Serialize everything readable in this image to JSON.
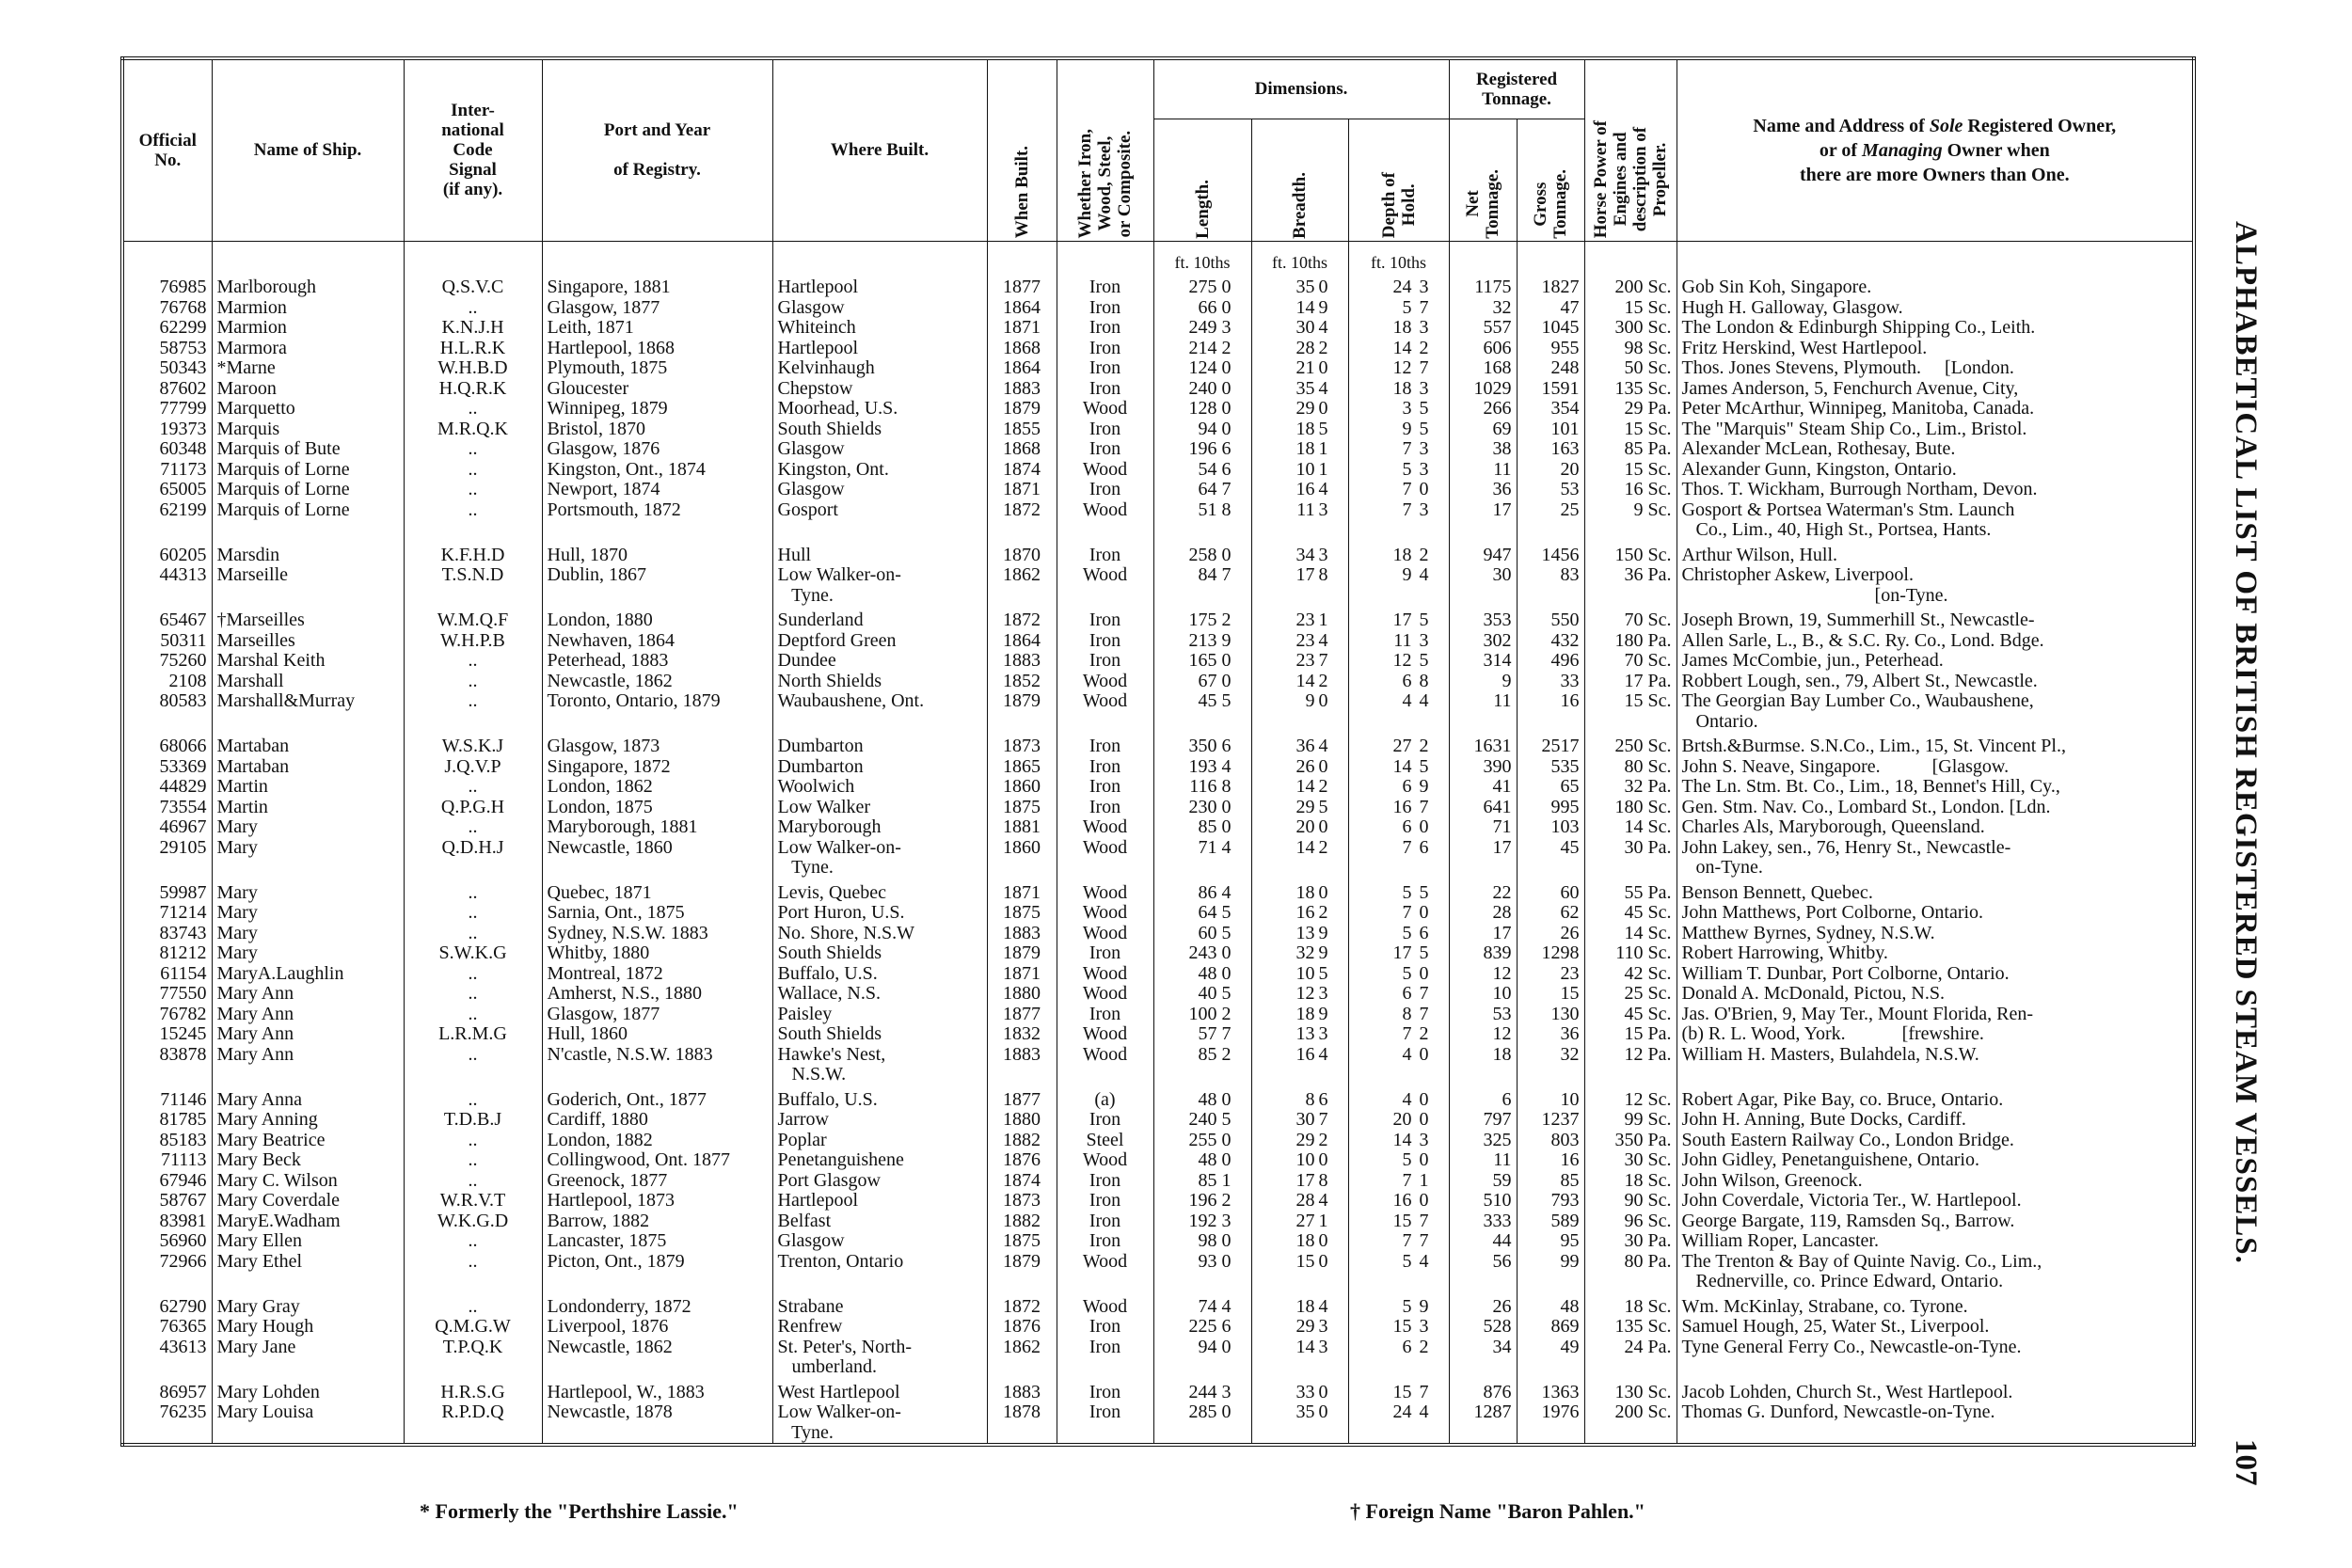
{
  "header": {
    "official_no": "Official\nNo.",
    "name": "Name of Ship.",
    "signal": "Inter-\nnational\nCode\nSignal\n(if any).",
    "port": "Port and Year\n\nof Registry.",
    "where": "Where Built.",
    "when": "When Built.",
    "material": "Whether Iron,\nWood, Steel,\nor Composite.",
    "dimensions": "Dimensions.",
    "length": "Length.",
    "breadth": "Breadth.",
    "depth": "Depth of\nHold.",
    "tonnage": "Registered\nTonnage.",
    "net": "Net\nTonnage.",
    "gross": "Gross\nTonnage.",
    "hp": "Horse Power of\nEngines and\ndescription of\nPropeller.",
    "owner": [
      "Name and Address of ",
      "Sole",
      " Registered Owner,",
      "or of ",
      "Managing",
      " Owner when",
      "there are more Owners than One."
    ],
    "units": [
      "ft. 10ths",
      "ft. 10ths",
      "ft. 10ths"
    ]
  },
  "groups": [
    [
      [
        76985,
        "Marlborough",
        "Q.S.V.C",
        "Singapore, 1881",
        "Hartlepool",
        1877,
        "Iron",
        [
          275,
          0
        ],
        [
          35,
          0
        ],
        [
          24,
          3
        ],
        1175,
        1827,
        "200 Sc.",
        "Gob Sin Koh, Singapore."
      ],
      [
        76768,
        "Marmion",
        "..",
        "Glasgow, 1877",
        "Glasgow",
        1864,
        "Iron",
        [
          66,
          0
        ],
        [
          14,
          9
        ],
        [
          5,
          7
        ],
        32,
        47,
        "15 Sc.",
        "Hugh H. Galloway, Glasgow."
      ],
      [
        62299,
        "Marmion",
        "K.N.J.H",
        "Leith, 1871",
        "Whiteinch",
        1871,
        "Iron",
        [
          249,
          3
        ],
        [
          30,
          4
        ],
        [
          18,
          3
        ],
        557,
        1045,
        "300 Sc.",
        "The London & Edinburgh Shipping Co., Leith."
      ],
      [
        58753,
        "Marmora",
        "H.L.R.K",
        "Hartlepool, 1868",
        "Hartlepool",
        1868,
        "Iron",
        [
          214,
          2
        ],
        [
          28,
          2
        ],
        [
          14,
          2
        ],
        606,
        955,
        "98 Sc.",
        "Fritz Herskind, West Hartlepool."
      ],
      [
        50343,
        "*Marne",
        "W.H.B.D",
        "Plymouth, 1875",
        "Kelvinhaugh",
        1864,
        "Iron",
        [
          124,
          0
        ],
        [
          21,
          0
        ],
        [
          12,
          7
        ],
        168,
        248,
        "50 Sc.",
        "Thos. Jones Stevens, Plymouth.     [London."
      ],
      [
        87602,
        "Maroon",
        "H.Q.R.K",
        "Gloucester",
        "Chepstow",
        1883,
        "Iron",
        [
          240,
          0
        ],
        [
          35,
          4
        ],
        [
          18,
          3
        ],
        1029,
        1591,
        "135 Sc.",
        "James Anderson, 5, Fenchurch Avenue, City,"
      ],
      [
        77799,
        "Marquetto",
        "..",
        "Winnipeg, 1879",
        "Moorhead, U.S.",
        1879,
        "Wood",
        [
          128,
          0
        ],
        [
          29,
          0
        ],
        [
          3,
          5
        ],
        266,
        354,
        "29 Pa.",
        "Peter McArthur, Winnipeg, Manitoba, Canada."
      ],
      [
        19373,
        "Marquis",
        "M.R.Q.K",
        "Bristol, 1870",
        "South Shields",
        1855,
        "Iron",
        [
          94,
          0
        ],
        [
          18,
          5
        ],
        [
          9,
          5
        ],
        69,
        101,
        "15 Sc.",
        "The \"Marquis\" Steam Ship Co., Lim., Bristol."
      ],
      [
        60348,
        "Marquis of Bute",
        "..",
        "Glasgow, 1876",
        "Glasgow",
        1868,
        "Iron",
        [
          196,
          6
        ],
        [
          18,
          1
        ],
        [
          7,
          3
        ],
        38,
        163,
        "85 Pa.",
        "Alexander McLean, Rothesay, Bute."
      ],
      [
        71173,
        "Marquis of Lorne",
        "..",
        "Kingston, Ont., 1874",
        "Kingston, Ont.",
        1874,
        "Wood",
        [
          54,
          6
        ],
        [
          10,
          1
        ],
        [
          5,
          3
        ],
        11,
        20,
        "15 Sc.",
        "Alexander Gunn, Kingston, Ontario."
      ],
      [
        65005,
        "Marquis of Lorne",
        "..",
        "Newport, 1874",
        "Glasgow",
        1871,
        "Iron",
        [
          64,
          7
        ],
        [
          16,
          4
        ],
        [
          7,
          0
        ],
        36,
        53,
        "16 Sc.",
        "Thos. T. Wickham, Burrough Northam, Devon."
      ],
      [
        62199,
        "Marquis of Lorne",
        "..",
        "Portsmouth, 1872",
        "Gosport",
        1872,
        "Wood",
        [
          51,
          8
        ],
        [
          11,
          3
        ],
        [
          7,
          3
        ],
        17,
        25,
        "9 Sc.",
        "Gosport & Portsea Waterman's Stm. Launch\n   Co., Lim., 40, High St., Portsea, Hants."
      ]
    ],
    [
      [
        60205,
        "Marsdin",
        "K.F.H.D",
        "Hull, 1870",
        "Hull",
        1870,
        "Iron",
        [
          258,
          0
        ],
        [
          34,
          3
        ],
        [
          18,
          2
        ],
        947,
        1456,
        "150 Sc.",
        "Arthur Wilson, Hull."
      ],
      [
        44313,
        "Marseille",
        "T.S.N.D",
        "Dublin, 1867",
        "Low Walker-on-\n   Tyne.",
        1862,
        "Wood",
        [
          84,
          7
        ],
        [
          17,
          8
        ],
        [
          9,
          4
        ],
        30,
        83,
        "36 Pa.",
        "Christopher Askew, Liverpool.\n                                         [on-Tyne."
      ]
    ],
    [
      [
        65467,
        "†Marseilles",
        "W.M.Q.F",
        "London, 1880",
        "Sunderland",
        1872,
        "Iron",
        [
          175,
          2
        ],
        [
          23,
          1
        ],
        [
          17,
          5
        ],
        353,
        550,
        "70 Sc.",
        "Joseph Brown, 19, Summerhill St., Newcastle-"
      ],
      [
        50311,
        "Marseilles",
        "W.H.P.B",
        "Newhaven, 1864",
        "Deptford Green",
        1864,
        "Iron",
        [
          213,
          9
        ],
        [
          23,
          4
        ],
        [
          11,
          3
        ],
        302,
        432,
        "180 Pa.",
        "Allen Sarle, L., B., & S.C. Ry. Co., Lond. Bdge."
      ],
      [
        75260,
        "Marshal Keith",
        "..",
        "Peterhead, 1883",
        "Dundee",
        1883,
        "Iron",
        [
          165,
          0
        ],
        [
          23,
          7
        ],
        [
          12,
          5
        ],
        314,
        496,
        "70 Sc.",
        "James McCombie, jun., Peterhead."
      ],
      [
        2108,
        "Marshall",
        "..",
        "Newcastle, 1862",
        "North Shields",
        1852,
        "Wood",
        [
          67,
          0
        ],
        [
          14,
          2
        ],
        [
          6,
          8
        ],
        9,
        33,
        "17 Pa.",
        "Robbert Lough, sen., 79, Albert St., Newcastle."
      ],
      [
        80583,
        "Marshall&Murray",
        "..",
        "Toronto, Ontario, 1879",
        "Waubaushene, Ont.",
        1879,
        "Wood",
        [
          45,
          5
        ],
        [
          9,
          0
        ],
        [
          4,
          4
        ],
        11,
        16,
        "15 Sc.",
        "The Georgian Bay Lumber Co., Waubaushene,\n   Ontario."
      ]
    ],
    [
      [
        68066,
        "Martaban",
        "W.S.K.J",
        "Glasgow, 1873",
        "Dumbarton",
        1873,
        "Iron",
        [
          350,
          6
        ],
        [
          36,
          4
        ],
        [
          27,
          2
        ],
        1631,
        2517,
        "250 Sc.",
        "Brtsh.&Burmse. S.N.Co., Lim., 15, St. Vincent Pl.,"
      ],
      [
        53369,
        "Martaban",
        "J.Q.V.P",
        "Singapore, 1872",
        "Dumbarton",
        1865,
        "Iron",
        [
          193,
          4
        ],
        [
          26,
          0
        ],
        [
          14,
          5
        ],
        390,
        535,
        "80 Sc.",
        "John S. Neave, Singapore.           [Glasgow."
      ],
      [
        44829,
        "Martin",
        "..",
        "London, 1862",
        "Woolwich",
        1860,
        "Iron",
        [
          116,
          8
        ],
        [
          14,
          2
        ],
        [
          6,
          9
        ],
        41,
        65,
        "32 Pa.",
        "The Ln. Stm. Bt. Co., Lim., 18, Bennet's Hill, Cy.,"
      ],
      [
        73554,
        "Martin",
        "Q.P.G.H",
        "London, 1875",
        "Low Walker",
        1875,
        "Iron",
        [
          230,
          0
        ],
        [
          29,
          5
        ],
        [
          16,
          7
        ],
        641,
        995,
        "180 Sc.",
        "Gen. Stm. Nav. Co., Lombard St., London. [Ldn."
      ],
      [
        46967,
        "Mary",
        "..",
        "Maryborough, 1881",
        "Maryborough",
        1881,
        "Wood",
        [
          85,
          0
        ],
        [
          20,
          0
        ],
        [
          6,
          0
        ],
        71,
        103,
        "14 Sc.",
        "Charles Als, Maryborough, Queensland."
      ],
      [
        29105,
        "Mary",
        "Q.D.H.J",
        "Newcastle, 1860",
        "Low Walker-on-\n   Tyne.",
        1860,
        "Wood",
        [
          71,
          4
        ],
        [
          14,
          2
        ],
        [
          7,
          6
        ],
        17,
        45,
        "30 Pa.",
        "John Lakey, sen., 76, Henry St., Newcastle-\n   on-Tyne."
      ]
    ],
    [
      [
        59987,
        "Mary",
        "..",
        "Quebec, 1871",
        "Levis, Quebec",
        1871,
        "Wood",
        [
          86,
          4
        ],
        [
          18,
          0
        ],
        [
          5,
          5
        ],
        22,
        60,
        "55 Pa.",
        "Benson Bennett, Quebec."
      ],
      [
        71214,
        "Mary",
        "..",
        "Sarnia, Ont., 1875",
        "Port Huron, U.S.",
        1875,
        "Wood",
        [
          64,
          5
        ],
        [
          16,
          2
        ],
        [
          7,
          0
        ],
        28,
        62,
        "45 Sc.",
        "John Matthews, Port Colborne, Ontario."
      ],
      [
        83743,
        "Mary",
        "..",
        "Sydney, N.S.W. 1883",
        "No. Shore, N.S.W",
        1883,
        "Wood",
        [
          60,
          5
        ],
        [
          13,
          9
        ],
        [
          5,
          6
        ],
        17,
        26,
        "14 Sc.",
        "Matthew Byrnes, Sydney, N.S.W."
      ],
      [
        81212,
        "Mary",
        "S.W.K.G",
        "Whitby, 1880",
        "South Shields",
        1879,
        "Iron",
        [
          243,
          0
        ],
        [
          32,
          9
        ],
        [
          17,
          5
        ],
        839,
        1298,
        "110 Sc.",
        "Robert Harrowing, Whitby."
      ],
      [
        61154,
        "MaryA.Laughlin",
        "..",
        "Montreal, 1872",
        "Buffalo, U.S.",
        1871,
        "Wood",
        [
          48,
          0
        ],
        [
          10,
          5
        ],
        [
          5,
          0
        ],
        12,
        23,
        "42 Sc.",
        "William T. Dunbar, Port Colborne, Ontario."
      ],
      [
        77550,
        "Mary Ann",
        "..",
        "Amherst, N.S., 1880",
        "Wallace, N.S.",
        1880,
        "Wood",
        [
          40,
          5
        ],
        [
          12,
          3
        ],
        [
          6,
          7
        ],
        10,
        15,
        "25 Sc.",
        "Donald A. McDonald, Pictou, N.S."
      ],
      [
        76782,
        "Mary Ann",
        "..",
        "Glasgow, 1877",
        "Paisley",
        1877,
        "Iron",
        [
          100,
          2
        ],
        [
          18,
          9
        ],
        [
          8,
          7
        ],
        53,
        130,
        "45 Sc.",
        "Jas. O'Brien, 9, May Ter., Mount Florida, Ren-"
      ],
      [
        15245,
        "Mary Ann",
        "L.R.M.G",
        "Hull, 1860",
        "South Shields",
        1832,
        "Wood",
        [
          57,
          7
        ],
        [
          13,
          3
        ],
        [
          7,
          2
        ],
        12,
        36,
        "15 Pa.",
        "(b) R. L. Wood, York.            [frewshire."
      ],
      [
        83878,
        "Mary Ann",
        "..",
        "N'castle, N.S.W. 1883",
        "Hawke's Nest,\n   N.S.W.",
        1883,
        "Wood",
        [
          85,
          2
        ],
        [
          16,
          4
        ],
        [
          4,
          0
        ],
        18,
        32,
        "12 Pa.",
        "William H. Masters, Bulahdela, N.S.W."
      ]
    ],
    [
      [
        71146,
        "Mary Anna",
        "..",
        "Goderich, Ont., 1877",
        "Buffalo, U.S.",
        1877,
        "(a)",
        [
          48,
          0
        ],
        [
          8,
          6
        ],
        [
          4,
          0
        ],
        6,
        10,
        "12 Sc.",
        "Robert Agar, Pike Bay, co. Bruce, Ontario."
      ],
      [
        81785,
        "Mary Anning",
        "T.D.B.J",
        "Cardiff, 1880",
        "Jarrow",
        1880,
        "Iron",
        [
          240,
          5
        ],
        [
          30,
          7
        ],
        [
          20,
          0
        ],
        797,
        1237,
        "99 Sc.",
        "John H. Anning, Bute Docks, Cardiff."
      ],
      [
        85183,
        "Mary Beatrice",
        "..",
        "London, 1882",
        "Poplar",
        1882,
        "Steel",
        [
          255,
          0
        ],
        [
          29,
          2
        ],
        [
          14,
          3
        ],
        325,
        803,
        "350 Pa.",
        "South Eastern Railway Co., London Bridge."
      ],
      [
        71113,
        "Mary Beck",
        "..",
        "Collingwood, Ont. 1877",
        "Penetanguishene",
        1876,
        "Wood",
        [
          48,
          0
        ],
        [
          10,
          0
        ],
        [
          5,
          0
        ],
        11,
        16,
        "30 Sc.",
        "John Gidley, Penetanguishene, Ontario."
      ],
      [
        67946,
        "Mary C. Wilson",
        "..",
        "Greenock, 1877",
        "Port Glasgow",
        1874,
        "Iron",
        [
          85,
          1
        ],
        [
          17,
          8
        ],
        [
          7,
          1
        ],
        59,
        85,
        "18 Sc.",
        "John Wilson, Greenock."
      ],
      [
        58767,
        "Mary Coverdale",
        "W.R.V.T",
        "Hartlepool, 1873",
        "Hartlepool",
        1873,
        "Iron",
        [
          196,
          2
        ],
        [
          28,
          4
        ],
        [
          16,
          0
        ],
        510,
        793,
        "90 Sc.",
        "John Coverdale, Victoria Ter., W. Hartlepool."
      ],
      [
        83981,
        "MaryE.Wadham",
        "W.K.G.D",
        "Barrow, 1882",
        "Belfast",
        1882,
        "Iron",
        [
          192,
          3
        ],
        [
          27,
          1
        ],
        [
          15,
          7
        ],
        333,
        589,
        "96 Sc.",
        "George Bargate, 119, Ramsden Sq., Barrow."
      ],
      [
        56960,
        "Mary Ellen",
        "..",
        "Lancaster, 1875",
        "Glasgow",
        1875,
        "Iron",
        [
          98,
          0
        ],
        [
          18,
          0
        ],
        [
          7,
          7
        ],
        44,
        95,
        "30 Pa.",
        "William Roper, Lancaster."
      ],
      [
        72966,
        "Mary Ethel",
        "..",
        "Picton, Ont., 1879",
        "Trenton, Ontario",
        1879,
        "Wood",
        [
          93,
          0
        ],
        [
          15,
          0
        ],
        [
          5,
          4
        ],
        56,
        99,
        "80 Pa.",
        "The Trenton & Bay of Quinte Navig. Co., Lim.,\n   Rednerville, co. Prince Edward, Ontario."
      ]
    ],
    [
      [
        62790,
        "Mary Gray",
        "..",
        "Londonderry, 1872",
        "Strabane",
        1872,
        "Wood",
        [
          74,
          4
        ],
        [
          18,
          4
        ],
        [
          5,
          9
        ],
        26,
        48,
        "18 Sc.",
        "Wm. McKinlay, Strabane, co. Tyrone."
      ],
      [
        76365,
        "Mary Hough",
        "Q.M.G.W",
        "Liverpool, 1876",
        "Renfrew",
        1876,
        "Iron",
        [
          225,
          6
        ],
        [
          29,
          3
        ],
        [
          15,
          3
        ],
        528,
        869,
        "135 Sc.",
        "Samuel Hough, 25, Water St., Liverpool."
      ],
      [
        43613,
        "Mary Jane",
        "T.P.Q.K",
        "Newcastle, 1862",
        "St. Peter's, North-\n   umberland.",
        1862,
        "Iron",
        [
          94,
          0
        ],
        [
          14,
          3
        ],
        [
          6,
          2
        ],
        34,
        49,
        "24 Pa.",
        "Tyne General Ferry Co., Newcastle-on-Tyne."
      ]
    ],
    [
      [
        86957,
        "Mary Lohden",
        "H.R.S.G",
        "Hartlepool, W., 1883",
        "West Hartlepool",
        1883,
        "Iron",
        [
          244,
          3
        ],
        [
          33,
          0
        ],
        [
          15,
          7
        ],
        876,
        1363,
        "130 Sc.",
        "Jacob Lohden, Church St., West Hartlepool."
      ],
      [
        76235,
        "Mary Louisa",
        "R.P.D.Q",
        "Newcastle, 1878",
        "Low Walker-on-\n   Tyne.",
        1878,
        "Iron",
        [
          285,
          0
        ],
        [
          35,
          0
        ],
        [
          24,
          4
        ],
        1287,
        1976,
        "200 Sc.",
        "Thomas G. Dunford, Newcastle-on-Tyne."
      ]
    ]
  ],
  "side_title": "ALPHABETICAL LIST OF BRITISH REGISTERED STEAM VESSELS.",
  "page_number": "107",
  "footnotes": [
    "* Formerly the \"Perthshire Lassie.\"",
    "† Foreign Name \"Baron Pahlen.\""
  ]
}
